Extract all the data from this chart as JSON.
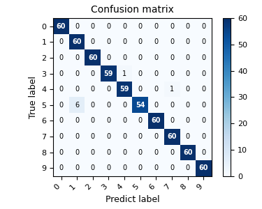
{
  "title": "Confusion matrix",
  "xlabel": "Predict label",
  "ylabel": "True label",
  "matrix": [
    [
      60,
      0,
      0,
      0,
      0,
      0,
      0,
      0,
      0,
      0
    ],
    [
      0,
      60,
      0,
      0,
      0,
      0,
      0,
      0,
      0,
      0
    ],
    [
      0,
      0,
      60,
      0,
      0,
      0,
      0,
      0,
      0,
      0
    ],
    [
      0,
      0,
      0,
      59,
      1,
      0,
      0,
      0,
      0,
      0
    ],
    [
      0,
      0,
      0,
      0,
      59,
      0,
      0,
      1,
      0,
      0
    ],
    [
      0,
      6,
      0,
      0,
      0,
      54,
      0,
      0,
      0,
      0
    ],
    [
      0,
      0,
      0,
      0,
      0,
      0,
      60,
      0,
      0,
      0
    ],
    [
      0,
      0,
      0,
      0,
      0,
      0,
      0,
      60,
      0,
      0
    ],
    [
      0,
      0,
      0,
      0,
      0,
      0,
      0,
      0,
      60,
      0
    ],
    [
      0,
      0,
      0,
      0,
      0,
      0,
      0,
      0,
      0,
      60
    ]
  ],
  "tick_labels": [
    "0",
    "1",
    "2",
    "3",
    "4",
    "5",
    "6",
    "7",
    "8",
    "9"
  ],
  "cmap": "Blues",
  "vmin": 0,
  "vmax": 60,
  "colorbar_ticks": [
    0,
    10,
    20,
    30,
    40,
    50,
    60
  ],
  "text_threshold": 30,
  "text_color_high": "white",
  "text_color_low": "black",
  "figsize": [
    3.75,
    3.0
  ],
  "dpi": 100,
  "title_fontsize": 10,
  "label_fontsize": 9,
  "tick_fontsize": 8,
  "cell_fontsize": 7
}
